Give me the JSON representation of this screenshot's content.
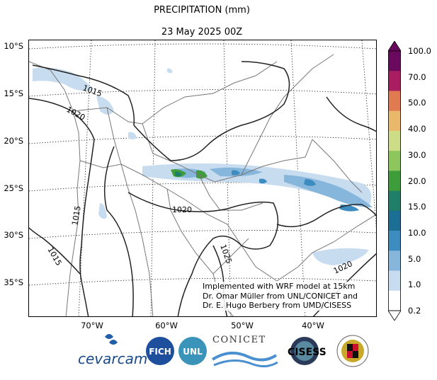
{
  "title": "PRECIPITATION (mm)",
  "subtitle": "23 May 2025 00Z",
  "lat_labels": [
    "10°S",
    "15°S",
    "20°S",
    "25°S",
    "30°S",
    "35°S"
  ],
  "lon_labels": [
    "70°W",
    "60°W",
    "50°W",
    "40°W"
  ],
  "isobar_labels": [
    "1015",
    "1020",
    "1015",
    "1020",
    "1015",
    "1025",
    "1020"
  ],
  "colorbar": {
    "labels": [
      "100.0",
      "70.0",
      "50.0",
      "40.0",
      "30.0",
      "20.0",
      "15.0",
      "10.0",
      "5.0",
      "1.0",
      "0.2"
    ],
    "colors": [
      "#6a0a5e",
      "#a81e60",
      "#e07a50",
      "#e9b86a",
      "#cddc86",
      "#8cc65c",
      "#3f9c3a",
      "#1f7f68",
      "#1b6f94",
      "#3d8cc0",
      "#86b6dc",
      "#c8dcef",
      "#ffffff"
    ]
  },
  "credit": {
    "line1": "Implemented with WRF model at 15km",
    "line2": "Dr. Omar Müller from UNL/CONICET and",
    "line3": "Dr. E. Hugo Berbery from UMD/CISESS"
  },
  "logos": {
    "cevarcam": "cevarcam",
    "fich": "FICH",
    "unl": "UNL",
    "conicet": "CONICET",
    "cisess": "CISESS"
  }
}
